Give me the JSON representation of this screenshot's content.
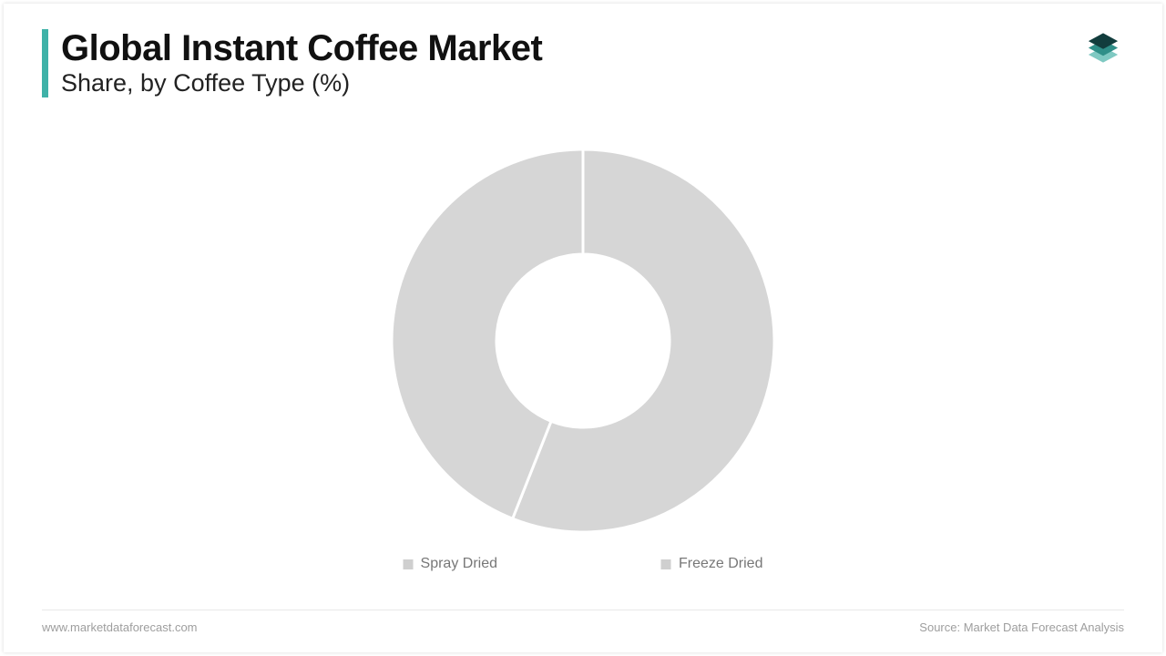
{
  "header": {
    "title": "Global Instant Coffee Market",
    "subtitle": "Share, by Coffee Type (%)",
    "title_fontsize": 40,
    "subtitle_fontsize": 27,
    "accent_bar_color": "#3fb2a8",
    "accent_bar_width": 7,
    "title_color": "#111111",
    "subtitle_color": "#222222"
  },
  "logo": {
    "layer_top_color": "#123d3d",
    "layer_mid_color": "#2f8f88",
    "layer_bottom_color": "#7fc9c2"
  },
  "chart": {
    "type": "donut",
    "outer_radius": 210,
    "inner_radius": 95,
    "background_color": "#ffffff",
    "gap_stroke_color": "#ffffff",
    "gap_stroke_width": 3,
    "series": [
      {
        "label": "Spray Dried",
        "value": 56,
        "color": "#d6d6d6"
      },
      {
        "label": "Freeze Dried",
        "value": 44,
        "color": "#d6d6d6"
      }
    ],
    "legend": {
      "fontsize": 16,
      "text_color": "#8a8a8a",
      "swatch_color": "#cfcfcf",
      "item0": "Spray Dried",
      "item1": "Freeze Dried"
    }
  },
  "footer": {
    "left": "www.marketdataforecast.com",
    "right": "Source: Market Data Forecast Analysis",
    "fontsize": 13,
    "text_color": "#9e9e9e",
    "rule_color": "#e8e8e8"
  }
}
